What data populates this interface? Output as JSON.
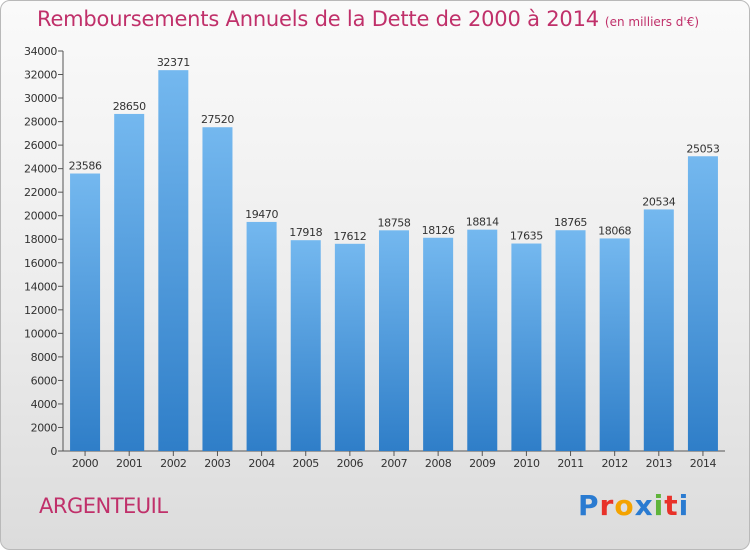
{
  "title": "Remboursements Annuels de la Dette de 2000 à 2014",
  "unit_note": "(en milliers d'€)",
  "city": "ARGENTEUIL",
  "logo": {
    "letters": [
      "P",
      "r",
      "o",
      "x",
      "i",
      "t",
      "i"
    ],
    "colors": [
      "#2a7bd1",
      "#e8322a",
      "#f4a300",
      "#2a7bd1",
      "#5fb43a",
      "#e8322a",
      "#2a7bd1"
    ]
  },
  "colors": {
    "title": "#c0306a",
    "bar_top": "#74b8ef",
    "bar_bottom": "#2f7ec8",
    "axis": "#555555"
  },
  "chart_data": {
    "type": "bar",
    "categories": [
      "2000",
      "2001",
      "2002",
      "2003",
      "2004",
      "2005",
      "2006",
      "2007",
      "2008",
      "2009",
      "2010",
      "2011",
      "2012",
      "2013",
      "2014"
    ],
    "values": [
      23586,
      28650,
      32371,
      27520,
      19470,
      17918,
      17612,
      18758,
      18126,
      18814,
      17635,
      18765,
      18068,
      20534,
      25053
    ],
    "y_ticks": [
      0,
      2000,
      4000,
      6000,
      8000,
      10000,
      12000,
      14000,
      16000,
      18000,
      20000,
      22000,
      24000,
      26000,
      28000,
      30000,
      32000,
      34000
    ],
    "ylim": [
      0,
      34000
    ],
    "grid": false
  }
}
